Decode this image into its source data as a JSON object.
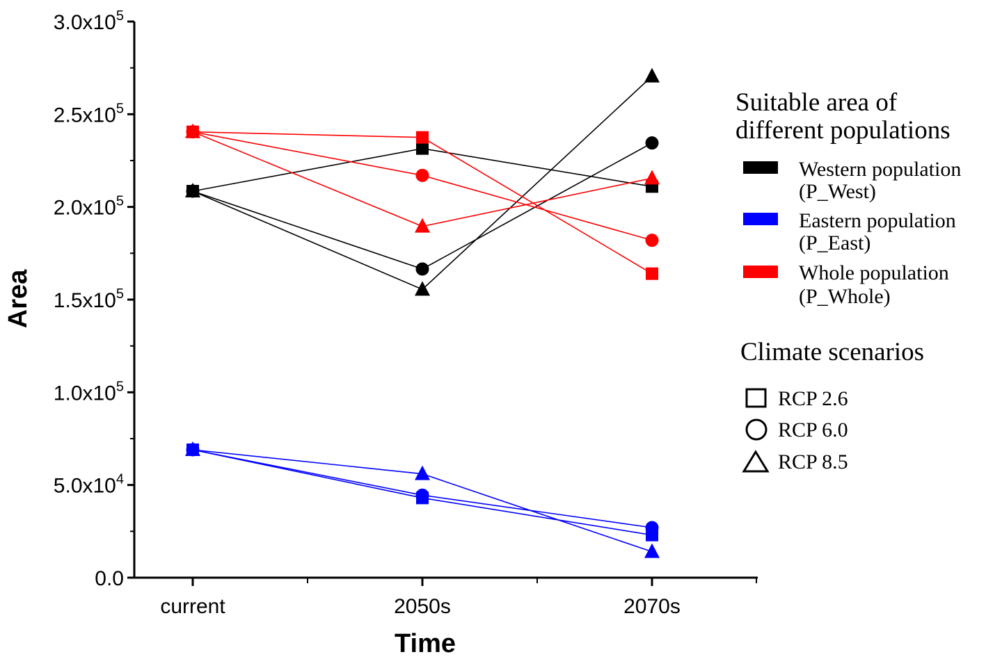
{
  "chart_data": {
    "type": "line",
    "xlabel": "Time",
    "ylabel": "Area",
    "categories": [
      "current",
      "2050s",
      "2070s"
    ],
    "ylim": [
      0,
      300000
    ],
    "y_ticks": [
      {
        "value": 0,
        "mantissa": "0.0",
        "exponent": ""
      },
      {
        "value": 50000,
        "mantissa": "5.0x10",
        "exponent": "4"
      },
      {
        "value": 100000,
        "mantissa": "1.0x10",
        "exponent": "5"
      },
      {
        "value": 150000,
        "mantissa": "1.5x10",
        "exponent": "5"
      },
      {
        "value": 200000,
        "mantissa": "2.0x10",
        "exponent": "5"
      },
      {
        "value": 250000,
        "mantissa": "2.5x10",
        "exponent": "5"
      },
      {
        "value": 300000,
        "mantissa": "3.0x10",
        "exponent": "5"
      }
    ],
    "series": [
      {
        "name": "Western population RCP 2.6",
        "population": "P_West",
        "scenario": "RCP 2.6",
        "color": "#000000",
        "marker": "square",
        "values": [
          208500,
          231500,
          211000
        ]
      },
      {
        "name": "Western population RCP 6.0",
        "population": "P_West",
        "scenario": "RCP 6.0",
        "color": "#000000",
        "marker": "circle",
        "values": [
          208500,
          166500,
          234500
        ]
      },
      {
        "name": "Western population RCP 8.5",
        "population": "P_West",
        "scenario": "RCP 8.5",
        "color": "#000000",
        "marker": "triangle",
        "values": [
          208500,
          155500,
          270500
        ]
      },
      {
        "name": "Eastern population RCP 2.6",
        "population": "P_East",
        "scenario": "RCP 2.6",
        "color": "#0000ff",
        "marker": "square",
        "values": [
          69000,
          43000,
          23000
        ]
      },
      {
        "name": "Eastern population RCP 6.0",
        "population": "P_East",
        "scenario": "RCP 6.0",
        "color": "#0000ff",
        "marker": "circle",
        "values": [
          69000,
          44500,
          27000
        ]
      },
      {
        "name": "Eastern population RCP 8.5",
        "population": "P_East",
        "scenario": "RCP 8.5",
        "color": "#0000ff",
        "marker": "triangle",
        "values": [
          69000,
          56000,
          14000
        ]
      },
      {
        "name": "Whole population RCP 2.6",
        "population": "P_Whole",
        "scenario": "RCP 2.6",
        "color": "#ff0000",
        "marker": "square",
        "values": [
          240500,
          237500,
          164000
        ]
      },
      {
        "name": "Whole population RCP 6.0",
        "population": "P_Whole",
        "scenario": "RCP 6.0",
        "color": "#ff0000",
        "marker": "circle",
        "values": [
          240500,
          217000,
          182000
        ]
      },
      {
        "name": "Whole population RCP 8.5",
        "population": "P_Whole",
        "scenario": "RCP 8.5",
        "color": "#ff0000",
        "marker": "triangle",
        "values": [
          240500,
          189500,
          215500
        ]
      }
    ],
    "legend": {
      "populations_title_line1": "Suitable area of",
      "populations_title_line2": "different populations",
      "populations": [
        {
          "line1": "Western population",
          "line2": "(P_West)",
          "color": "#000000"
        },
        {
          "line1": "Eastern population",
          "line2": "(P_East)",
          "color": "#0000ff"
        },
        {
          "line1": "Whole population",
          "line2": "(P_Whole)",
          "color": "#ff0000"
        }
      ],
      "scenarios_title": "Climate scenarios",
      "scenarios": [
        {
          "label": "RCP 2.6",
          "marker": "square"
        },
        {
          "label": "RCP 6.0",
          "marker": "circle"
        },
        {
          "label": "RCP 8.5",
          "marker": "triangle"
        }
      ]
    }
  }
}
